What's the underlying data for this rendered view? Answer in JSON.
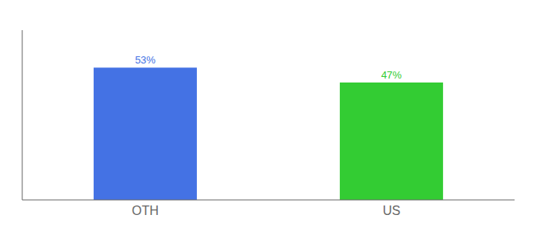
{
  "chart_data": {
    "type": "bar",
    "categories": [
      "OTH",
      "US"
    ],
    "values": [
      53,
      47
    ],
    "value_labels": [
      "53%",
      "47%"
    ],
    "colors": [
      "#4472e4",
      "#33cc33"
    ],
    "ylim": [
      0,
      68
    ],
    "data_labels": true,
    "tick_labels": "x"
  }
}
